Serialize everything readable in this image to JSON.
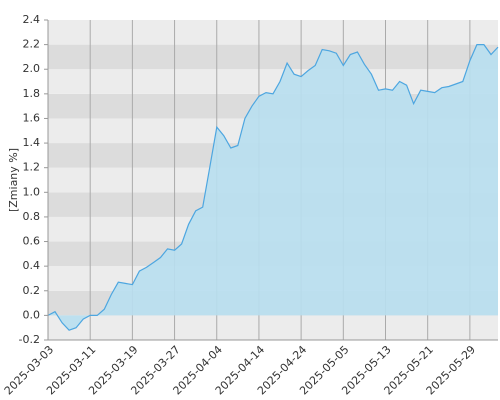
{
  "chart_data": {
    "type": "area",
    "y_label": "[Zmiany %]",
    "categories": [
      "2025-03-03",
      null,
      null,
      null,
      null,
      null,
      "2025-03-11",
      null,
      null,
      null,
      null,
      null,
      "2025-03-19",
      null,
      null,
      null,
      null,
      null,
      "2025-03-27",
      null,
      null,
      null,
      null,
      null,
      "2025-04-04",
      null,
      null,
      null,
      null,
      null,
      "2025-04-14",
      null,
      null,
      null,
      null,
      null,
      "2025-04-24",
      null,
      null,
      null,
      null,
      null,
      "2025-05-05",
      null,
      null,
      null,
      null,
      null,
      "2025-05-13",
      null,
      null,
      null,
      null,
      null,
      "2025-05-21",
      null,
      null,
      null,
      null,
      null,
      "2025-05-29",
      null,
      null,
      null,
      null
    ],
    "values": [
      0.0,
      0.03,
      -0.06,
      -0.12,
      -0.1,
      -0.03,
      0.0,
      0.0,
      0.05,
      0.17,
      0.27,
      0.26,
      0.25,
      0.36,
      0.39,
      0.43,
      0.47,
      0.54,
      0.53,
      0.58,
      0.74,
      0.85,
      0.88,
      1.2,
      1.53,
      1.46,
      1.36,
      1.38,
      1.6,
      1.7,
      1.78,
      1.81,
      1.8,
      1.9,
      2.05,
      1.96,
      1.94,
      1.99,
      2.03,
      2.16,
      2.15,
      2.13,
      2.03,
      2.12,
      2.14,
      2.04,
      1.96,
      1.83,
      1.84,
      1.83,
      1.9,
      1.87,
      1.72,
      1.83,
      1.82,
      1.81,
      1.85,
      1.86,
      1.88,
      1.9,
      2.07,
      2.2,
      2.2,
      2.12,
      2.18
    ],
    "color": "#4da6e0",
    "fill": "#b8dff0",
    "ylim": [
      -0.2,
      2.4
    ],
    "yticks": [
      -0.2,
      {
        "value": 0,
        "label": "0.0"
      },
      0.2,
      0.4,
      0.6,
      0.8,
      {
        "value": 1,
        "label": "1.0"
      },
      1.2,
      1.4,
      1.6,
      1.8,
      {
        "value": 2,
        "label": "2.0"
      },
      2.2,
      2.4
    ],
    "grid": true
  }
}
